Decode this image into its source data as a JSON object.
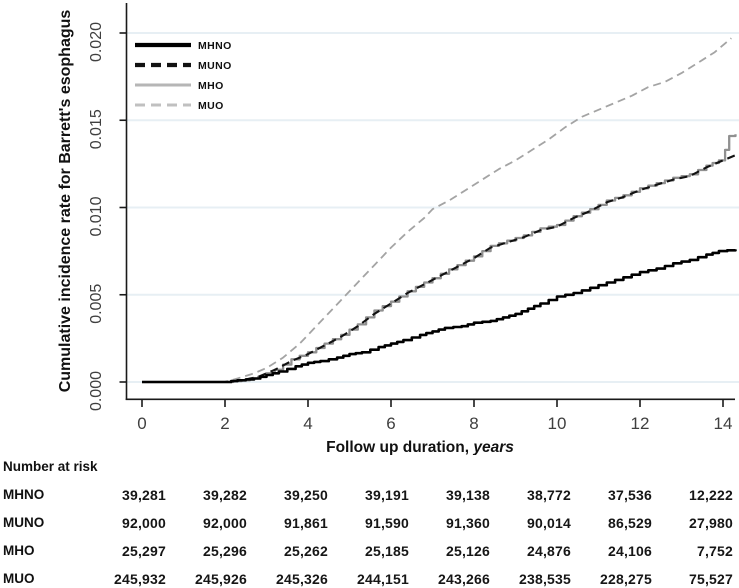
{
  "chart_data": {
    "type": "line",
    "title": "",
    "ylabel": "Cumulative incidence rate for Barrett's esophagus",
    "xlabel_prefix": "Follow up duration, ",
    "xlabel_emphasis": "years",
    "xlim": [
      0,
      14.6
    ],
    "ylim": [
      0,
      0.021
    ],
    "x_ticks": [
      0,
      2,
      4,
      6,
      8,
      10,
      12,
      14
    ],
    "y_ticks": [
      "0.000",
      "0.005",
      "0.010",
      "0.015",
      "0.020"
    ],
    "y_tick_values": [
      0,
      0.005,
      0.01,
      0.015,
      0.02
    ],
    "grid": "horizontal-light",
    "legend_position": "top-left-inside",
    "series": [
      {
        "name": "MUO",
        "color": "#a4a4a4",
        "legend_color": "#c0c0c0",
        "style": "dashed",
        "width": 1.8,
        "points": [
          [
            0,
            0
          ],
          [
            2,
            0
          ],
          [
            2.3,
            0.0002
          ],
          [
            2.7,
            0.0005
          ],
          [
            3,
            0.0008
          ],
          [
            3.4,
            0.0014
          ],
          [
            3.8,
            0.0022
          ],
          [
            4,
            0.0027
          ],
          [
            4.4,
            0.0037
          ],
          [
            4.8,
            0.0047
          ],
          [
            5.2,
            0.0057
          ],
          [
            5.6,
            0.0067
          ],
          [
            6,
            0.0077
          ],
          [
            6.4,
            0.0086
          ],
          [
            6.8,
            0.0094
          ],
          [
            7,
            0.0099
          ],
          [
            7.4,
            0.0104
          ],
          [
            7.8,
            0.011
          ],
          [
            8.2,
            0.0116
          ],
          [
            8.6,
            0.0122
          ],
          [
            9,
            0.0127
          ],
          [
            9.4,
            0.0133
          ],
          [
            9.8,
            0.0139
          ],
          [
            10.2,
            0.0146
          ],
          [
            10.6,
            0.0152
          ],
          [
            11,
            0.0156
          ],
          [
            11.4,
            0.016
          ],
          [
            11.8,
            0.0164
          ],
          [
            12.2,
            0.0169
          ],
          [
            12.6,
            0.0172
          ],
          [
            13,
            0.0177
          ],
          [
            13.4,
            0.0183
          ],
          [
            13.8,
            0.0189
          ],
          [
            14.2,
            0.0197
          ]
        ]
      },
      {
        "name": "MHO",
        "color": "#909090",
        "legend_color": "#b6b6b6",
        "style": "solid",
        "width": 2.3,
        "points": [
          [
            0,
            0
          ],
          [
            2,
            0
          ],
          [
            2.4,
            0.0001
          ],
          [
            2.8,
            0.0003
          ],
          [
            3.2,
            0.0007
          ],
          [
            3.6,
            0.0013
          ],
          [
            4,
            0.0017
          ],
          [
            4.4,
            0.0022
          ],
          [
            4.8,
            0.0027
          ],
          [
            5.2,
            0.0033
          ],
          [
            5.6,
            0.0041
          ],
          [
            6,
            0.0046
          ],
          [
            6.4,
            0.0052
          ],
          [
            6.8,
            0.0057
          ],
          [
            7.2,
            0.0062
          ],
          [
            7.6,
            0.0067
          ],
          [
            8,
            0.0072
          ],
          [
            8.4,
            0.0078
          ],
          [
            8.8,
            0.0081
          ],
          [
            9.2,
            0.0084
          ],
          [
            9.6,
            0.0088
          ],
          [
            10,
            0.009
          ],
          [
            10.4,
            0.0095
          ],
          [
            10.8,
            0.0099
          ],
          [
            11.2,
            0.0104
          ],
          [
            11.6,
            0.0107
          ],
          [
            12,
            0.0111
          ],
          [
            12.4,
            0.0114
          ],
          [
            12.8,
            0.0117
          ],
          [
            13.2,
            0.0119
          ],
          [
            13.6,
            0.0124
          ],
          [
            13.9,
            0.0127
          ],
          [
            14.05,
            0.0133
          ],
          [
            14.15,
            0.0141
          ],
          [
            14.3,
            0.0142
          ]
        ]
      },
      {
        "name": "MUNO",
        "color": "#121212",
        "legend_color": "#121212",
        "style": "dashed",
        "width": 2.1,
        "points": [
          [
            0,
            0
          ],
          [
            2,
            0
          ],
          [
            2.4,
            0.0001
          ],
          [
            2.8,
            0.0003
          ],
          [
            3.2,
            0.0007
          ],
          [
            3.6,
            0.0012
          ],
          [
            4,
            0.0016
          ],
          [
            4.4,
            0.0021
          ],
          [
            4.8,
            0.0026
          ],
          [
            5.2,
            0.0032
          ],
          [
            5.6,
            0.0039
          ],
          [
            6,
            0.0045
          ],
          [
            6.4,
            0.0051
          ],
          [
            6.8,
            0.0056
          ],
          [
            7.2,
            0.0061
          ],
          [
            7.6,
            0.0066
          ],
          [
            8,
            0.0071
          ],
          [
            8.4,
            0.0077
          ],
          [
            8.8,
            0.008
          ],
          [
            9.2,
            0.0083
          ],
          [
            9.6,
            0.0087
          ],
          [
            10,
            0.0089
          ],
          [
            10.4,
            0.0094
          ],
          [
            10.8,
            0.0098
          ],
          [
            11.2,
            0.0103
          ],
          [
            11.6,
            0.0106
          ],
          [
            12,
            0.011
          ],
          [
            12.4,
            0.0113
          ],
          [
            12.8,
            0.0116
          ],
          [
            13.2,
            0.0118
          ],
          [
            13.6,
            0.0123
          ],
          [
            14,
            0.0127
          ],
          [
            14.3,
            0.013
          ]
        ]
      },
      {
        "name": "MHNO",
        "color": "#000000",
        "legend_color": "#000000",
        "style": "solid",
        "width": 2.6,
        "points": [
          [
            0,
            0
          ],
          [
            2,
            0
          ],
          [
            2.3,
            0.0001
          ],
          [
            2.7,
            0.0002
          ],
          [
            3,
            0.0004
          ],
          [
            3.3,
            0.0006
          ],
          [
            3.7,
            0.0009
          ],
          [
            4,
            0.0011
          ],
          [
            4.3,
            0.0012
          ],
          [
            4.7,
            0.0014
          ],
          [
            5,
            0.0016
          ],
          [
            5.3,
            0.0017
          ],
          [
            5.7,
            0.002
          ],
          [
            6,
            0.0022
          ],
          [
            6.3,
            0.0024
          ],
          [
            6.7,
            0.0027
          ],
          [
            7,
            0.0029
          ],
          [
            7.3,
            0.0031
          ],
          [
            7.7,
            0.0032
          ],
          [
            8,
            0.0034
          ],
          [
            8.4,
            0.0035
          ],
          [
            8.7,
            0.0037
          ],
          [
            9,
            0.0039
          ],
          [
            9.3,
            0.0042
          ],
          [
            9.6,
            0.0045
          ],
          [
            10,
            0.0049
          ],
          [
            10.4,
            0.0051
          ],
          [
            10.8,
            0.0054
          ],
          [
            11.2,
            0.0057
          ],
          [
            11.6,
            0.006
          ],
          [
            12,
            0.0063
          ],
          [
            12.4,
            0.0065
          ],
          [
            12.8,
            0.0068
          ],
          [
            13.2,
            0.007
          ],
          [
            13.6,
            0.0073
          ],
          [
            13.9,
            0.0075
          ],
          [
            14.3,
            0.0076
          ]
        ]
      }
    ],
    "legend_order": [
      "MHNO",
      "MUNO",
      "MHO",
      "MUO"
    ]
  },
  "risk_table": {
    "title": "Number at risk",
    "time_points": [
      0,
      2,
      4,
      6,
      8,
      10,
      12,
      14
    ],
    "rows": [
      {
        "label": "MHNO",
        "values": [
          "39,281",
          "39,282",
          "39,250",
          "39,191",
          "39,138",
          "38,772",
          "37,536",
          "12,222"
        ]
      },
      {
        "label": "MUNO",
        "values": [
          "92,000",
          "92,000",
          "91,861",
          "91,590",
          "91,360",
          "90,014",
          "86,529",
          "27,980"
        ]
      },
      {
        "label": "MHO",
        "values": [
          "25,297",
          "25,296",
          "25,262",
          "25,185",
          "25,126",
          "24,876",
          "24,106",
          "7,752"
        ]
      },
      {
        "label": "MUO",
        "values": [
          "245,932",
          "245,926",
          "245,326",
          "244,151",
          "243,266",
          "238,535",
          "228,275",
          "75,527"
        ]
      }
    ]
  },
  "colors": {
    "background": "#ffffff",
    "grid": "#e7eff4",
    "axis": "#1a1a1a",
    "tick_label": "#3f3f3f",
    "text": "#111111"
  }
}
